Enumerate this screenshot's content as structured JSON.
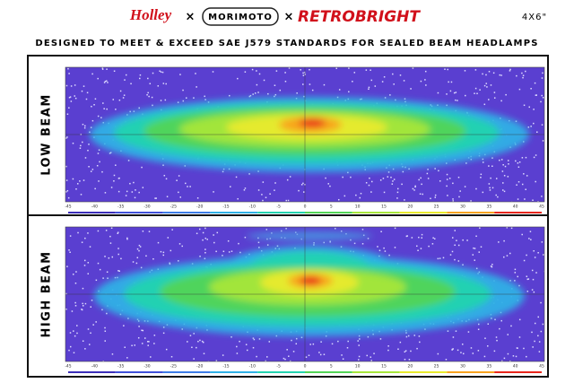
{
  "header": {
    "logos": [
      "Holley",
      "MORIMOTO",
      "RETROBRIGHT"
    ],
    "separator": "×",
    "size": "4X6\""
  },
  "subtitle": "DESIGNED TO MEET & EXCEED SAE J579 STANDARDS FOR SEALED BEAM HEADLAMPS",
  "panels": [
    {
      "label": "LOW BEAM"
    },
    {
      "label": "HIGH BEAM"
    }
  ],
  "x_ticks": [
    -45,
    -40,
    -35,
    -30,
    -25,
    -20,
    -15,
    -10,
    -5,
    0,
    5,
    10,
    15,
    20,
    25,
    30,
    35,
    40,
    45
  ]
}
